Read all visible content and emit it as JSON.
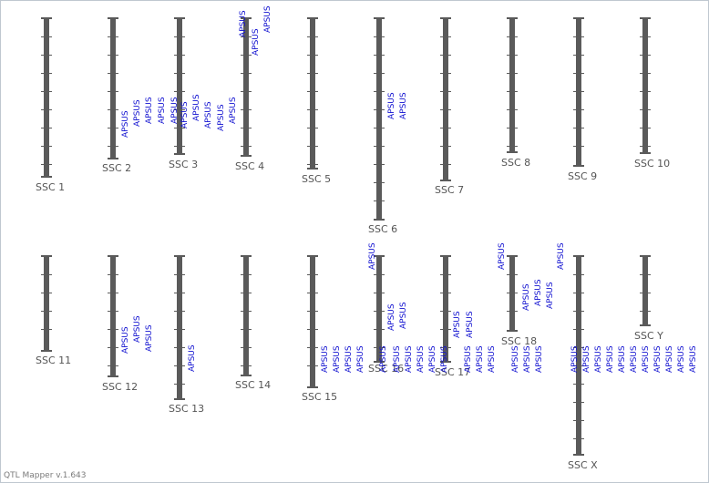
{
  "footer": "QTL Mapper v.1.643",
  "colors": {
    "chromosome": "#5a5a5a",
    "qtl_label": "#1010d0",
    "chromosome_label": "#555555"
  },
  "chromosomes": [
    {
      "name": "SSC 1",
      "qtls": []
    },
    {
      "name": "SSC 2",
      "qtls": [
        "APSUS",
        "APSUS",
        "APSUS"
      ]
    },
    {
      "name": "SSC 3",
      "qtls": [
        "APSUS",
        "APSUS",
        "APSUS",
        "APSUS",
        "APSUS"
      ]
    },
    {
      "name": "SSC 4",
      "qtls": [
        "APSUS",
        "APSUS",
        "APSUS",
        "APSUS",
        "APSUS"
      ]
    },
    {
      "name": "SSC 5",
      "qtls": []
    },
    {
      "name": "SSC 6",
      "qtls": [
        "APSUS",
        "APSUS"
      ]
    },
    {
      "name": "SSC 7",
      "qtls": []
    },
    {
      "name": "SSC 8",
      "qtls": []
    },
    {
      "name": "SSC 9",
      "qtls": []
    },
    {
      "name": "SSC 10",
      "qtls": []
    },
    {
      "name": "SSC 11",
      "qtls": []
    },
    {
      "name": "SSC 12",
      "qtls": [
        "APSUS",
        "APSUS",
        "APSUS"
      ]
    },
    {
      "name": "SSC 13",
      "qtls": [
        "APSUS"
      ]
    },
    {
      "name": "SSC 14",
      "qtls": []
    },
    {
      "name": "SSC 15",
      "qtls": [
        "APSUS",
        "APSUS",
        "APSUS",
        "APSUS"
      ]
    },
    {
      "name": "SSC 16",
      "qtls": [
        "APSUS",
        "APSUS",
        "APSUS",
        "APSUS",
        "APSUS",
        "APSUS",
        "APSUS",
        "APSUS"
      ]
    },
    {
      "name": "SSC 17",
      "qtls": [
        "APSUS",
        "APSUS",
        "APSUS",
        "APSUS",
        "APSUS"
      ]
    },
    {
      "name": "SSC 18",
      "qtls": [
        "APSUS",
        "APSUS",
        "APSUS",
        "APSUS",
        "APSUS",
        "APSUS",
        "APSUS",
        "APSUS",
        "APSUS"
      ]
    },
    {
      "name": "SSC X",
      "qtls": [
        "APSUS",
        "APSUS",
        "APSUS",
        "APSUS",
        "APSUS",
        "APSUS",
        "APSUS",
        "APSUS",
        "APSUS",
        "APSUS",
        "APSUS"
      ]
    },
    {
      "name": "SSC Y",
      "qtls": []
    }
  ]
}
